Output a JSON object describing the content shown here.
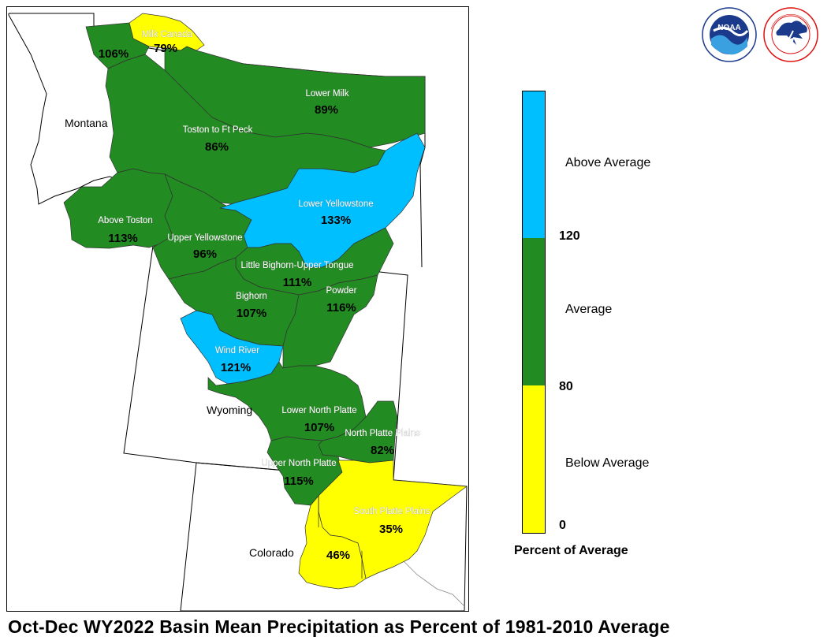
{
  "title": "Oct-Dec WY2022 Basin Mean Precipitation as Percent of 1981-2010 Average",
  "logos": {
    "noaa": {
      "name": "noaa-logo",
      "text": "NOAA",
      "ring_text": "NATIONAL OCEANIC AND ATMOSPHERIC ADMINISTRATION · U.S. DEPARTMENT OF COMMERCE"
    },
    "nws": {
      "name": "nws-logo",
      "ring_text": "NATIONAL WEATHER SERVICE"
    }
  },
  "states": [
    {
      "name": "Montana"
    },
    {
      "name": "Wyoming"
    },
    {
      "name": "Colorado"
    }
  ],
  "basins": [
    {
      "name": "Milk Canada",
      "value": "79%",
      "category": "below"
    },
    {
      "name": "",
      "value": "106%",
      "category": "average"
    },
    {
      "name": "Lower Milk",
      "value": "89%",
      "category": "average"
    },
    {
      "name": "Toston to Ft Peck",
      "value": "86%",
      "category": "average"
    },
    {
      "name": "Above Toston",
      "value": "113%",
      "category": "average"
    },
    {
      "name": "Lower Yellowstone",
      "value": "133%",
      "category": "above"
    },
    {
      "name": "Upper Yellowstone",
      "value": "96%",
      "category": "average"
    },
    {
      "name": "Little Bighorn-Upper Tongue",
      "value": "111%",
      "category": "average"
    },
    {
      "name": "Bighorn",
      "value": "107%",
      "category": "average"
    },
    {
      "name": "Powder",
      "value": "116%",
      "category": "average"
    },
    {
      "name": "Wind River",
      "value": "121%",
      "category": "above"
    },
    {
      "name": "Lower North Platte",
      "value": "107%",
      "category": "average"
    },
    {
      "name": "North Platte Plains",
      "value": "82%",
      "category": "average"
    },
    {
      "name": "Upper North Platte",
      "value": "115%",
      "category": "average"
    },
    {
      "name": "South Platte Plains",
      "value": "35%",
      "category": "below"
    },
    {
      "name": "",
      "value": "46%",
      "category": "below"
    }
  ],
  "legend": {
    "title": "Percent of Average",
    "categories": [
      {
        "label": "Above Average",
        "color": "#00bfff"
      },
      {
        "label": "Average",
        "color": "#228b22"
      },
      {
        "label": "Below Average",
        "color": "#ffff00"
      }
    ],
    "ticks": [
      "120",
      "80",
      "0"
    ]
  },
  "colors": {
    "above": "#00bfff",
    "average": "#228b22",
    "below": "#ffff00",
    "state_border": "#000000",
    "basin_border": "#333333"
  }
}
